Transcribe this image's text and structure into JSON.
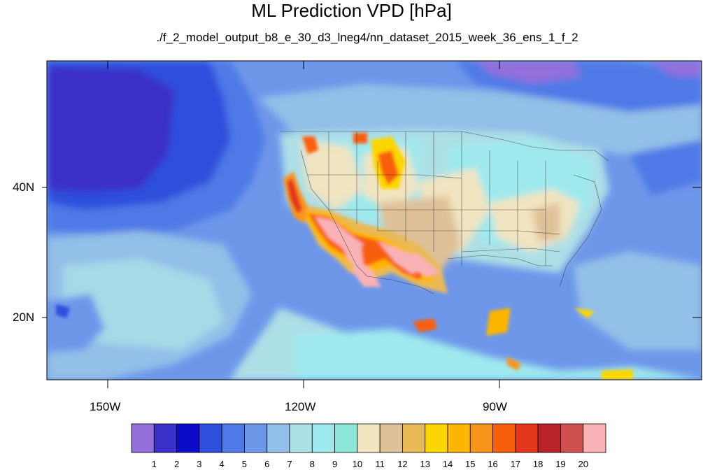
{
  "title": "ML Prediction VPD [hPa]",
  "subtitle": "./f_2_model_output_b8_e_30_d3_lneg4/nn_dataset_2015_week_36_ens_1_f_2",
  "lat_labels": [
    "40N",
    "20N"
  ],
  "lon_labels": [
    "150W",
    "120W",
    "90W"
  ],
  "colorbar": {
    "labels": [
      "1",
      "2",
      "3",
      "4",
      "5",
      "6",
      "7",
      "8",
      "9",
      "10",
      "11",
      "12",
      "13",
      "14",
      "15",
      "16",
      "17",
      "18",
      "19",
      "20"
    ],
    "colors": [
      "#9370db",
      "#3b2fc9",
      "#0b0bc8",
      "#2d4fdc",
      "#4f79e6",
      "#6e97ea",
      "#93c0e8",
      "#addfe6",
      "#9ee9ee",
      "#8ee6d8",
      "#f1e4c0",
      "#dfc199",
      "#e8b957",
      "#fdd600",
      "#fdb600",
      "#f9941b",
      "#f85f0b",
      "#e4361c",
      "#b8242a",
      "#d0504f",
      "#f9b3b6"
    ]
  }
}
